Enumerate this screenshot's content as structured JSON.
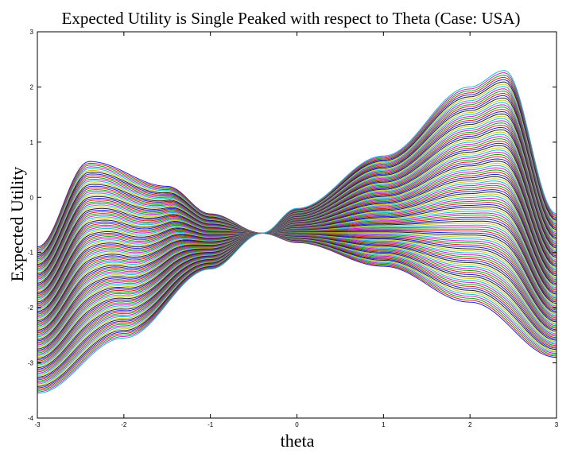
{
  "chart_data": {
    "type": "line",
    "title": "Expected Utility is Single Peaked with respect to Theta (Case: USA)",
    "xlabel": "theta",
    "ylabel": "Expected Utility",
    "xlim": [
      -3,
      3
    ],
    "ylim": [
      -4,
      3
    ],
    "xticks": [
      -3,
      -2,
      -1,
      0,
      1,
      2,
      3
    ],
    "yticks": [
      -4,
      -3,
      -2,
      -1,
      0,
      1,
      2,
      3
    ],
    "grid": false,
    "legend": "none",
    "family": {
      "description_values": "dense family of single-peaked curves; all pass through a common crossing point",
      "crossing_point": {
        "x": -0.4,
        "y": -0.65
      },
      "boundary_curves": [
        {
          "id": "leftmost-peak",
          "x": [
            -3,
            -2.4,
            -1.5,
            -1,
            -0.4,
            0,
            1,
            2,
            3
          ],
          "y": [
            -0.9,
            0.65,
            0.2,
            -0.3,
            -0.65,
            -0.82,
            -1.25,
            -1.9,
            -2.9
          ]
        },
        {
          "id": "rightmost-peak",
          "x": [
            -3,
            -2,
            -1,
            -0.4,
            0,
            1,
            2,
            2.4,
            3
          ],
          "y": [
            -3.55,
            -2.55,
            -1.3,
            -0.65,
            -0.2,
            0.75,
            2.0,
            2.3,
            -0.3
          ]
        }
      ],
      "curve_count": 110,
      "palette": [
        "#1f1fd6",
        "#d61f1f",
        "#12a012",
        "#c61fc6",
        "#18b8c8",
        "#c8c818",
        "#202020"
      ]
    }
  }
}
